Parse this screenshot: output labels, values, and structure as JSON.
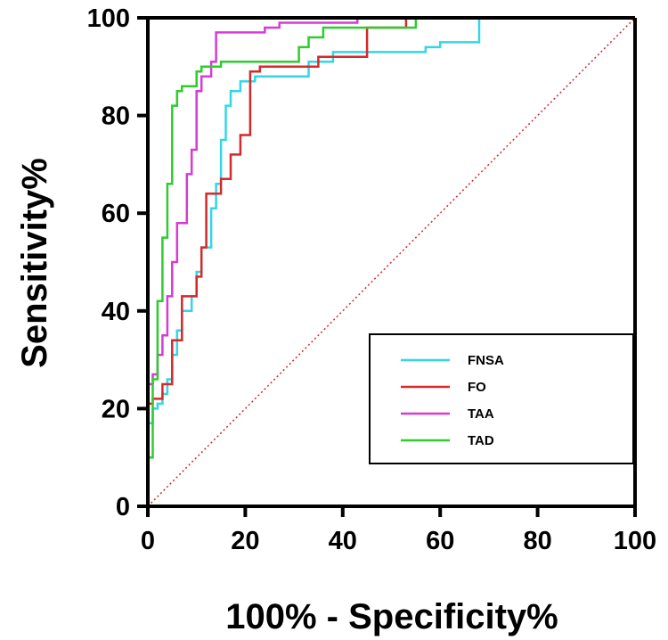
{
  "chart_data": {
    "type": "line",
    "title": "",
    "xlabel": "100% - Specificity%",
    "ylabel": "Sensitivity%",
    "xlim": [
      0,
      100
    ],
    "ylim": [
      0,
      100
    ],
    "xticks": [
      "0",
      "20",
      "40",
      "60",
      "80",
      "100"
    ],
    "yticks": [
      "0",
      "20",
      "40",
      "60",
      "80",
      "100"
    ],
    "legend_position": "bottom-right",
    "reference_line": {
      "name": "chance",
      "color": "#d62728",
      "style": "dotted",
      "x": [
        0,
        100
      ],
      "y": [
        0,
        100
      ]
    },
    "series": [
      {
        "name": "FNSA",
        "color": "#33d6e6",
        "x": [
          0,
          1,
          1,
          2,
          2,
          3,
          3,
          4,
          4,
          5,
          5,
          6,
          6,
          7,
          7,
          9,
          9,
          10,
          10,
          11,
          11,
          13,
          13,
          14,
          14,
          15,
          15,
          16,
          16,
          17,
          17,
          19,
          19,
          22,
          22,
          33,
          33,
          38,
          38,
          57,
          57,
          60,
          60,
          68,
          68
        ],
        "y": [
          17,
          17,
          20,
          20,
          21,
          21,
          23,
          23,
          26,
          26,
          31,
          31,
          36,
          36,
          40,
          40,
          43,
          43,
          48,
          48,
          53,
          53,
          61,
          61,
          66,
          66,
          75,
          75,
          82,
          82,
          85,
          85,
          87,
          87,
          88,
          88,
          91,
          91,
          93,
          93,
          94,
          94,
          95,
          95,
          100
        ]
      },
      {
        "name": "FO",
        "color": "#d42a2a",
        "x": [
          0,
          1,
          1,
          3,
          3,
          5,
          5,
          7,
          7,
          10,
          10,
          11,
          11,
          12,
          12,
          15,
          15,
          17,
          17,
          19,
          19,
          21,
          21,
          23,
          23,
          35,
          35,
          45,
          45,
          53,
          53
        ],
        "y": [
          21,
          21,
          22,
          22,
          25,
          25,
          34,
          34,
          43,
          43,
          47,
          47,
          53,
          53,
          64,
          64,
          67,
          67,
          72,
          72,
          76,
          76,
          89,
          89,
          90,
          90,
          92,
          92,
          98,
          98,
          100
        ]
      },
      {
        "name": "TAA",
        "color": "#d63bd6",
        "x": [
          0,
          1,
          1,
          2,
          2,
          3,
          3,
          4,
          4,
          5,
          5,
          6,
          6,
          8,
          8,
          9,
          9,
          10,
          10,
          11,
          11,
          13,
          13,
          14,
          14,
          24,
          24,
          27,
          27,
          43,
          43
        ],
        "y": [
          25,
          25,
          27,
          27,
          31,
          31,
          35,
          35,
          43,
          43,
          50,
          50,
          58,
          58,
          68,
          68,
          73,
          73,
          85,
          85,
          88,
          88,
          91,
          91,
          97,
          97,
          98,
          98,
          99,
          99,
          100
        ]
      },
      {
        "name": "TAD",
        "color": "#2ecc2e",
        "x": [
          0,
          1,
          1,
          2,
          2,
          3,
          3,
          4,
          4,
          5,
          5,
          6,
          6,
          7,
          7,
          10,
          10,
          11,
          11,
          15,
          15,
          31,
          31,
          33,
          33,
          36,
          36,
          55,
          55
        ],
        "y": [
          10,
          10,
          26,
          26,
          42,
          42,
          55,
          55,
          66,
          66,
          82,
          82,
          85,
          85,
          86,
          86,
          89,
          89,
          90,
          90,
          91,
          91,
          94,
          94,
          96,
          96,
          98,
          98,
          100
        ]
      }
    ]
  }
}
